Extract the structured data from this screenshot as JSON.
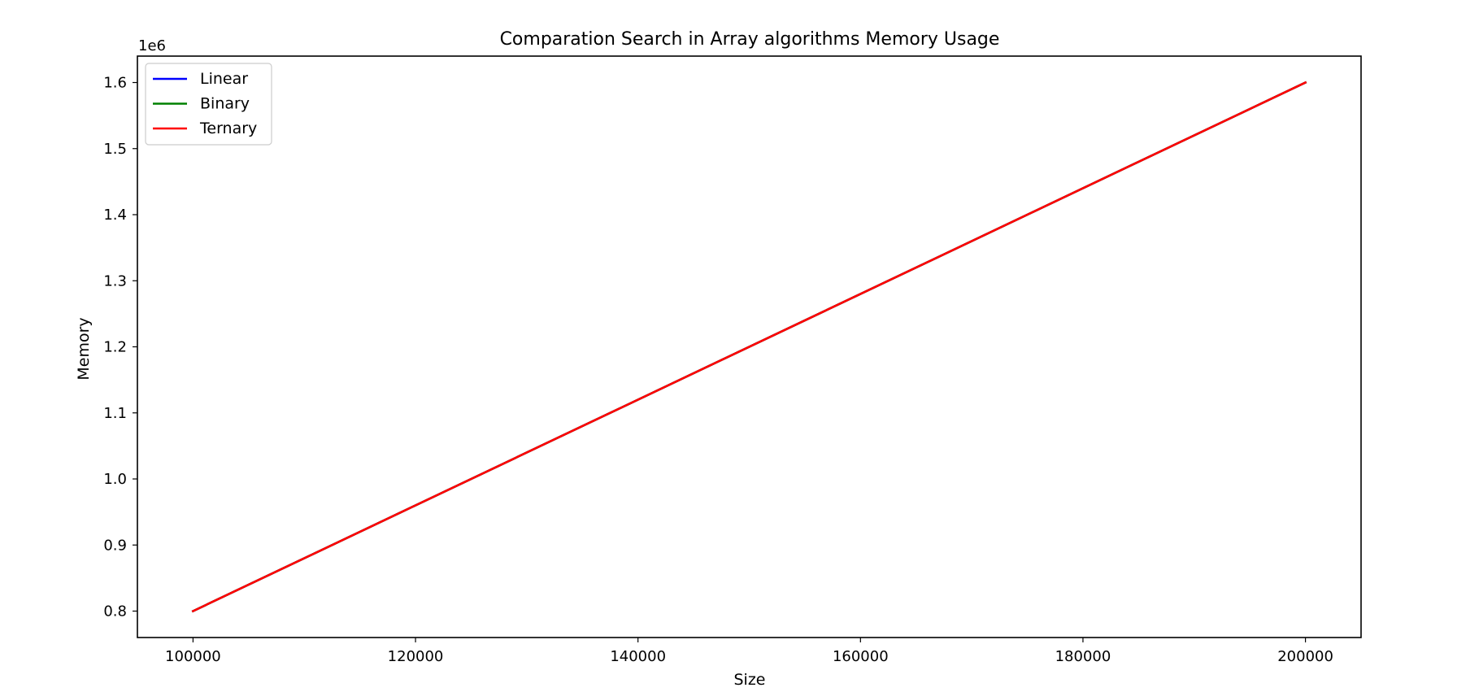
{
  "chart_data": {
    "type": "line",
    "title": "Comparation Search in Array algorithms Memory Usage",
    "xlabel": "Size",
    "ylabel": "Memory",
    "y_offset_label": "1e6",
    "xlim": [
      95000,
      205000
    ],
    "ylim": [
      0.76,
      1.64
    ],
    "x_ticks": [
      100000,
      120000,
      140000,
      160000,
      180000,
      200000
    ],
    "x_tick_labels": [
      "100000",
      "120000",
      "140000",
      "160000",
      "180000",
      "200000"
    ],
    "y_ticks": [
      0.8,
      0.9,
      1.0,
      1.1,
      1.2,
      1.3,
      1.4,
      1.5,
      1.6
    ],
    "y_tick_labels": [
      "0.8",
      "0.9",
      "1.0",
      "1.1",
      "1.2",
      "1.3",
      "1.4",
      "1.5",
      "1.6"
    ],
    "grid": false,
    "legend_position": "top-left",
    "series": [
      {
        "name": "Linear",
        "color": "#0000ff",
        "x": [
          100000,
          200000
        ],
        "y": [
          0.8,
          1.6
        ]
      },
      {
        "name": "Binary",
        "color": "#008000",
        "x": [
          100000,
          200000
        ],
        "y": [
          0.8,
          1.6
        ]
      },
      {
        "name": "Ternary",
        "color": "#ff0000",
        "x": [
          100000,
          200000
        ],
        "y": [
          0.8,
          1.6
        ]
      }
    ]
  }
}
